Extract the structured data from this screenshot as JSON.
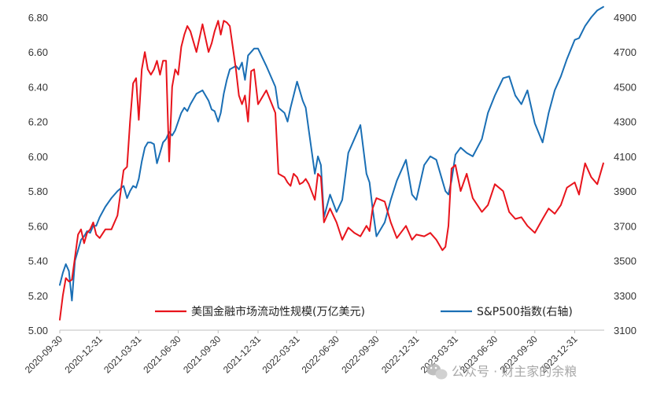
{
  "chart_data": {
    "type": "line",
    "x_ticks": [
      "2020-09-30",
      "2020-12-31",
      "2021-03-31",
      "2021-06-30",
      "2021-09-30",
      "2021-12-31",
      "2022-03-31",
      "2022-06-30",
      "2022-09-30",
      "2022-12-31",
      "2023-03-31",
      "2023-06-30",
      "2023-09-30",
      "2023-12-31"
    ],
    "y_left": {
      "min": 5.0,
      "max": 6.8,
      "ticks": [
        "5.00",
        "5.20",
        "5.40",
        "5.60",
        "5.80",
        "6.00",
        "6.20",
        "6.40",
        "6.60",
        "6.80"
      ]
    },
    "y_right": {
      "min": 3100,
      "max": 4900,
      "ticks": [
        "3100",
        "3300",
        "3500",
        "3700",
        "3900",
        "4100",
        "4300",
        "4500",
        "4700",
        "4900"
      ]
    },
    "grid": false,
    "legend_position": "bottom-right",
    "series": [
      {
        "name": "美国金融市场流动性规模(万亿美元)",
        "axis": "left",
        "color": "#e8141c",
        "x": [
          "2020-09-30",
          "2020-10-07",
          "2020-10-14",
          "2020-10-21",
          "2020-10-28",
          "2020-11-04",
          "2020-11-11",
          "2020-11-18",
          "2020-11-25",
          "2020-12-02",
          "2020-12-09",
          "2020-12-16",
          "2020-12-23",
          "2020-12-31",
          "2021-01-13",
          "2021-01-27",
          "2021-02-10",
          "2021-02-24",
          "2021-03-04",
          "2021-03-11",
          "2021-03-18",
          "2021-03-25",
          "2021-03-31",
          "2021-04-07",
          "2021-04-14",
          "2021-04-21",
          "2021-04-28",
          "2021-05-05",
          "2021-05-12",
          "2021-05-19",
          "2021-05-26",
          "2021-06-02",
          "2021-06-09",
          "2021-06-16",
          "2021-06-23",
          "2021-06-30",
          "2021-07-07",
          "2021-07-14",
          "2021-07-21",
          "2021-07-28",
          "2021-08-11",
          "2021-08-25",
          "2021-09-08",
          "2021-09-15",
          "2021-09-22",
          "2021-09-30",
          "2021-10-06",
          "2021-10-13",
          "2021-10-20",
          "2021-10-27",
          "2021-11-10",
          "2021-11-17",
          "2021-11-24",
          "2021-12-01",
          "2021-12-08",
          "2021-12-15",
          "2021-12-22",
          "2021-12-31",
          "2022-01-19",
          "2022-02-09",
          "2022-02-16",
          "2022-03-02",
          "2022-03-09",
          "2022-03-16",
          "2022-03-23",
          "2022-03-31",
          "2022-04-06",
          "2022-04-13",
          "2022-04-20",
          "2022-04-27",
          "2022-05-11",
          "2022-05-18",
          "2022-05-25",
          "2022-06-01",
          "2022-06-15",
          "2022-06-30",
          "2022-07-13",
          "2022-07-27",
          "2022-08-10",
          "2022-08-24",
          "2022-09-07",
          "2022-09-14",
          "2022-09-21",
          "2022-09-30",
          "2022-10-19",
          "2022-11-02",
          "2022-11-16",
          "2022-12-07",
          "2022-12-21",
          "2022-12-31",
          "2023-01-18",
          "2023-02-01",
          "2023-02-15",
          "2023-03-01",
          "2023-03-08",
          "2023-03-15",
          "2023-03-22",
          "2023-03-31",
          "2023-04-12",
          "2023-04-26",
          "2023-05-10",
          "2023-05-31",
          "2023-06-14",
          "2023-06-30",
          "2023-07-19",
          "2023-08-02",
          "2023-08-16",
          "2023-08-30",
          "2023-09-13",
          "2023-09-30",
          "2023-10-18",
          "2023-11-01",
          "2023-11-15",
          "2023-11-29",
          "2023-12-13",
          "2023-12-31",
          "2024-01-10",
          "2024-01-24",
          "2024-02-07",
          "2024-02-21",
          "2024-03-06"
        ],
        "values": [
          5.06,
          5.2,
          5.3,
          5.28,
          5.29,
          5.42,
          5.55,
          5.58,
          5.5,
          5.56,
          5.58,
          5.62,
          5.55,
          5.53,
          5.58,
          5.58,
          5.66,
          5.92,
          5.94,
          6.2,
          6.42,
          6.45,
          6.21,
          6.5,
          6.6,
          6.5,
          6.47,
          6.5,
          6.55,
          6.47,
          6.55,
          6.55,
          5.97,
          6.4,
          6.5,
          6.47,
          6.63,
          6.7,
          6.75,
          6.72,
          6.6,
          6.76,
          6.6,
          6.65,
          6.72,
          6.78,
          6.7,
          6.78,
          6.77,
          6.75,
          6.5,
          6.35,
          6.3,
          6.35,
          6.2,
          6.49,
          6.5,
          6.3,
          6.38,
          6.25,
          5.9,
          5.88,
          5.85,
          5.83,
          5.9,
          5.88,
          5.84,
          5.85,
          5.87,
          5.84,
          5.75,
          5.9,
          5.88,
          5.62,
          5.7,
          5.62,
          5.52,
          5.59,
          5.56,
          5.54,
          5.6,
          5.57,
          5.7,
          5.76,
          5.74,
          5.62,
          5.53,
          5.6,
          5.52,
          5.55,
          5.54,
          5.56,
          5.52,
          5.46,
          5.48,
          5.6,
          5.93,
          5.95,
          5.8,
          5.9,
          5.76,
          5.68,
          5.72,
          5.84,
          5.8,
          5.68,
          5.64,
          5.65,
          5.6,
          5.56,
          5.64,
          5.7,
          5.67,
          5.72,
          5.82,
          5.85,
          5.78,
          5.96,
          5.88,
          5.84,
          5.96
        ]
      },
      {
        "name": "S&P500指数(右轴)",
        "axis": "right",
        "color": "#1a6fb5",
        "x": [
          "2020-09-30",
          "2020-10-07",
          "2020-10-14",
          "2020-10-21",
          "2020-10-28",
          "2020-11-04",
          "2020-11-11",
          "2020-11-18",
          "2020-11-25",
          "2020-12-02",
          "2020-12-09",
          "2020-12-16",
          "2020-12-23",
          "2020-12-31",
          "2021-01-13",
          "2021-01-27",
          "2021-02-10",
          "2021-02-24",
          "2021-03-04",
          "2021-03-11",
          "2021-03-18",
          "2021-03-25",
          "2021-03-31",
          "2021-04-07",
          "2021-04-14",
          "2021-04-21",
          "2021-04-28",
          "2021-05-05",
          "2021-05-12",
          "2021-05-19",
          "2021-05-26",
          "2021-06-02",
          "2021-06-09",
          "2021-06-16",
          "2021-06-23",
          "2021-06-30",
          "2021-07-07",
          "2021-07-14",
          "2021-07-21",
          "2021-07-28",
          "2021-08-11",
          "2021-08-25",
          "2021-09-08",
          "2021-09-15",
          "2021-09-22",
          "2021-09-30",
          "2021-10-06",
          "2021-10-13",
          "2021-10-20",
          "2021-10-27",
          "2021-11-10",
          "2021-11-17",
          "2021-11-24",
          "2021-12-01",
          "2021-12-08",
          "2021-12-15",
          "2021-12-22",
          "2021-12-31",
          "2022-01-19",
          "2022-02-09",
          "2022-02-16",
          "2022-03-02",
          "2022-03-09",
          "2022-03-16",
          "2022-03-23",
          "2022-03-31",
          "2022-04-06",
          "2022-04-13",
          "2022-04-20",
          "2022-04-27",
          "2022-05-11",
          "2022-05-18",
          "2022-05-25",
          "2022-06-01",
          "2022-06-15",
          "2022-06-30",
          "2022-07-13",
          "2022-07-27",
          "2022-08-10",
          "2022-08-24",
          "2022-09-07",
          "2022-09-14",
          "2022-09-21",
          "2022-09-30",
          "2022-10-19",
          "2022-11-02",
          "2022-11-16",
          "2022-12-07",
          "2022-12-21",
          "2022-12-31",
          "2023-01-18",
          "2023-02-01",
          "2023-02-15",
          "2023-03-01",
          "2023-03-08",
          "2023-03-15",
          "2023-03-22",
          "2023-03-31",
          "2023-04-12",
          "2023-04-26",
          "2023-05-10",
          "2023-05-31",
          "2023-06-14",
          "2023-06-30",
          "2023-07-19",
          "2023-08-02",
          "2023-08-16",
          "2023-08-30",
          "2023-09-13",
          "2023-09-30",
          "2023-10-18",
          "2023-11-01",
          "2023-11-15",
          "2023-11-29",
          "2023-12-13",
          "2023-12-31",
          "2024-01-10",
          "2024-01-24",
          "2024-02-07",
          "2024-02-21",
          "2024-03-06"
        ],
        "values": [
          3360,
          3430,
          3480,
          3440,
          3270,
          3500,
          3560,
          3620,
          3640,
          3670,
          3660,
          3700,
          3700,
          3750,
          3810,
          3860,
          3900,
          3930,
          3860,
          3900,
          3930,
          3920,
          3970,
          4070,
          4150,
          4180,
          4180,
          4170,
          4060,
          4120,
          4180,
          4200,
          4240,
          4220,
          4250,
          4300,
          4350,
          4380,
          4360,
          4400,
          4460,
          4480,
          4420,
          4370,
          4360,
          4300,
          4350,
          4460,
          4540,
          4600,
          4620,
          4600,
          4640,
          4540,
          4680,
          4700,
          4720,
          4720,
          4620,
          4500,
          4380,
          4350,
          4300,
          4380,
          4450,
          4530,
          4480,
          4420,
          4380,
          4250,
          4000,
          4100,
          4050,
          3750,
          3880,
          3780,
          3850,
          4120,
          4200,
          4280,
          4000,
          3950,
          3800,
          3640,
          3720,
          3850,
          3960,
          4080,
          3880,
          3850,
          4050,
          4100,
          4080,
          3960,
          3900,
          3880,
          3960,
          4110,
          4150,
          4120,
          4100,
          4200,
          4350,
          4450,
          4550,
          4560,
          4450,
          4400,
          4480,
          4290,
          4180,
          4350,
          4480,
          4560,
          4660,
          4770,
          4780,
          4850,
          4900,
          4940,
          4960
        ]
      }
    ]
  },
  "legend": {
    "items": [
      {
        "label": "美国金融市场流动性规模(万亿美元)",
        "color": "#e8141c"
      },
      {
        "label": "S&P500指数(右轴)",
        "color": "#1a6fb5"
      }
    ]
  },
  "watermark": {
    "text": "公众号 · 财主家的余粮",
    "icon": "wechat-icon"
  }
}
